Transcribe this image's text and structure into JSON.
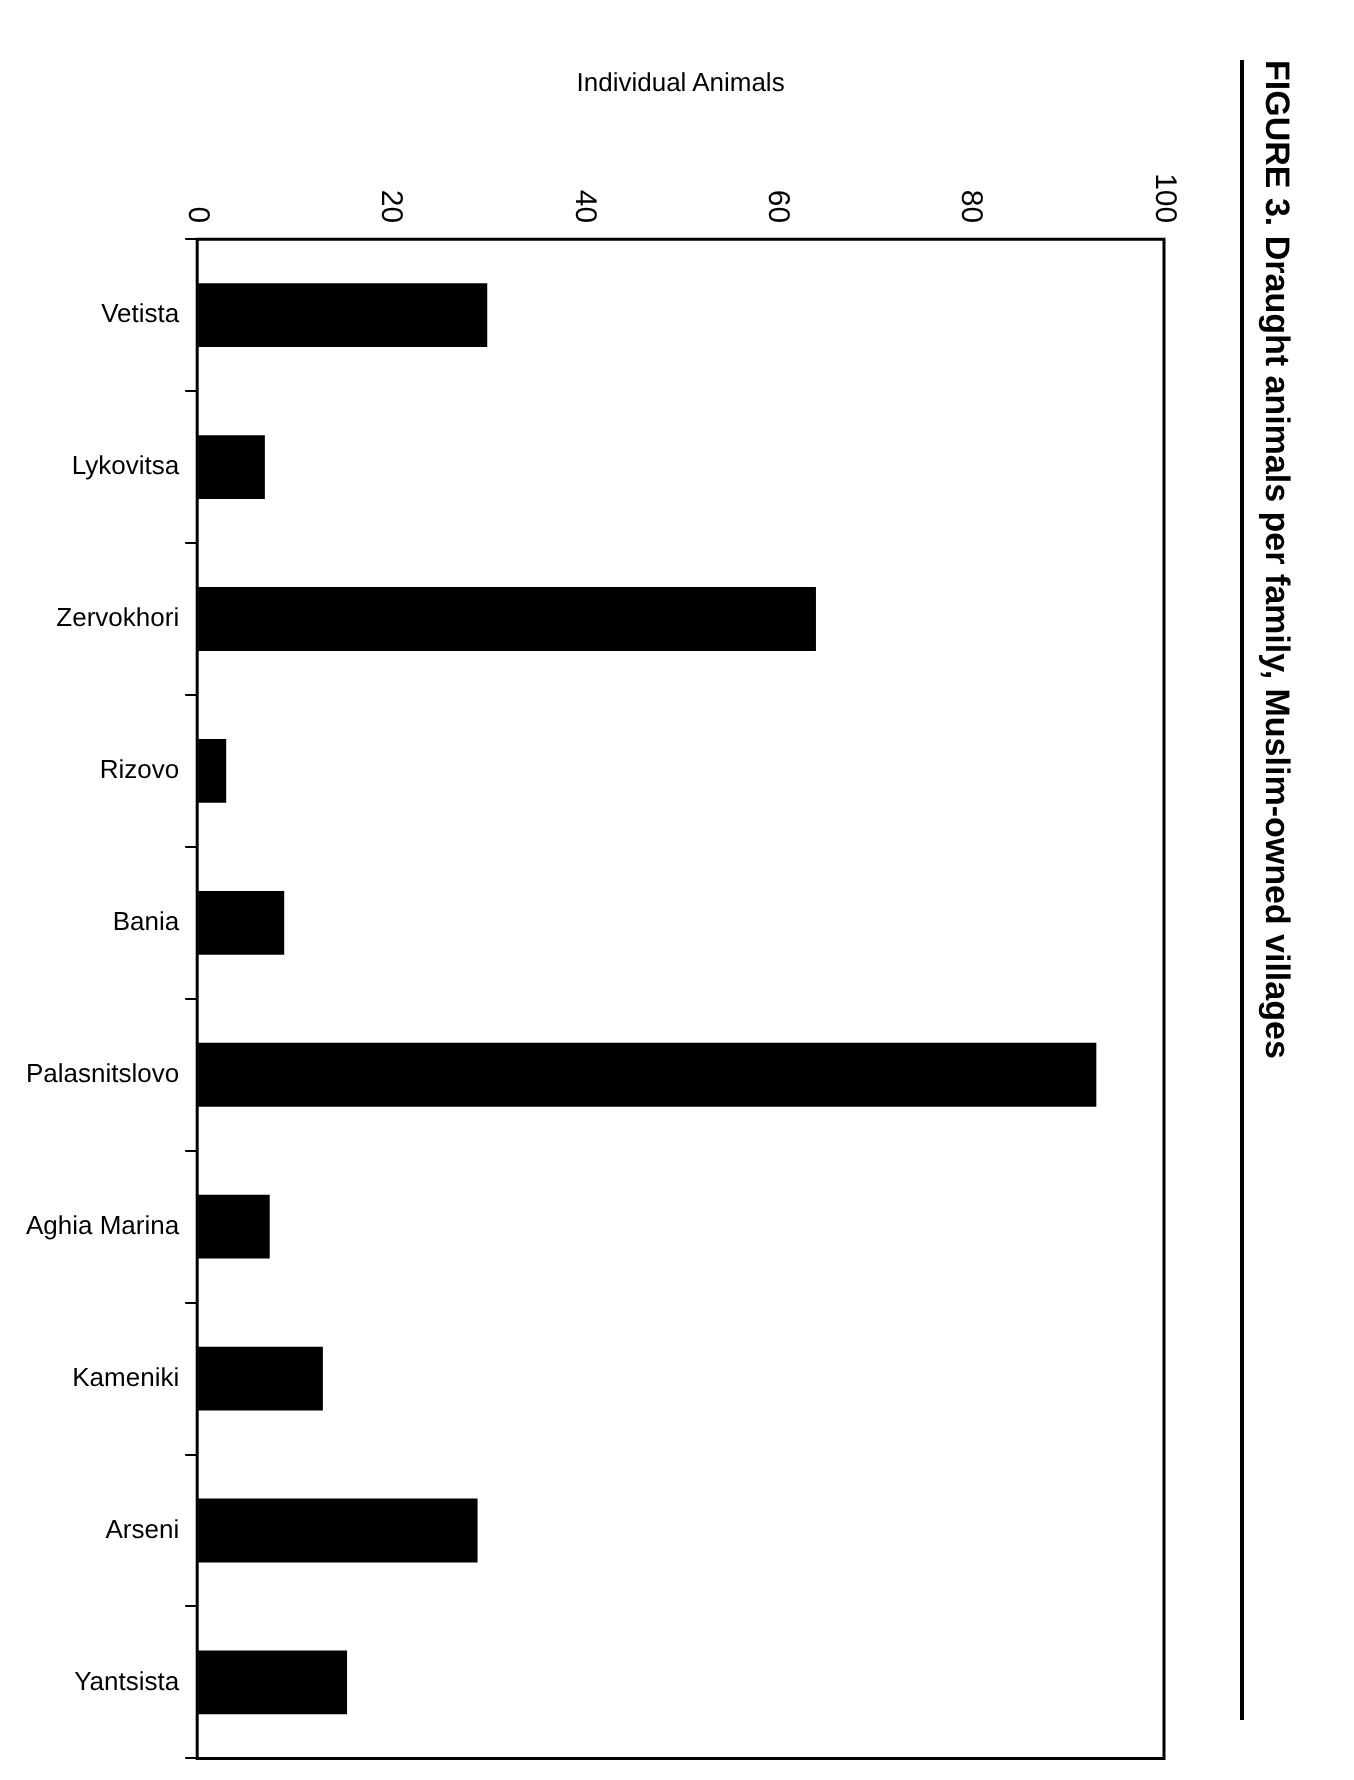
{
  "chart_data": {
    "type": "bar",
    "orientation": "horizontal",
    "title": "FIGURE 3. Draught animals per family, Muslim-owned villages",
    "xlabel": "Individual Animals",
    "categories": [
      "Vetista",
      "Lykovitsa",
      "Zervokhori",
      "Rizovo",
      "Bania",
      "Palasnitslovo",
      "Aghia Marina",
      "Kameniki",
      "Arseni",
      "Yantsista"
    ],
    "values": [
      30,
      7,
      64,
      3,
      9,
      93,
      7.5,
      13,
      29,
      15.5
    ],
    "color": "#000000",
    "xlim": [
      0,
      100
    ],
    "xticks": [
      0,
      20,
      40,
      60,
      80,
      100
    ],
    "grid": false
  }
}
